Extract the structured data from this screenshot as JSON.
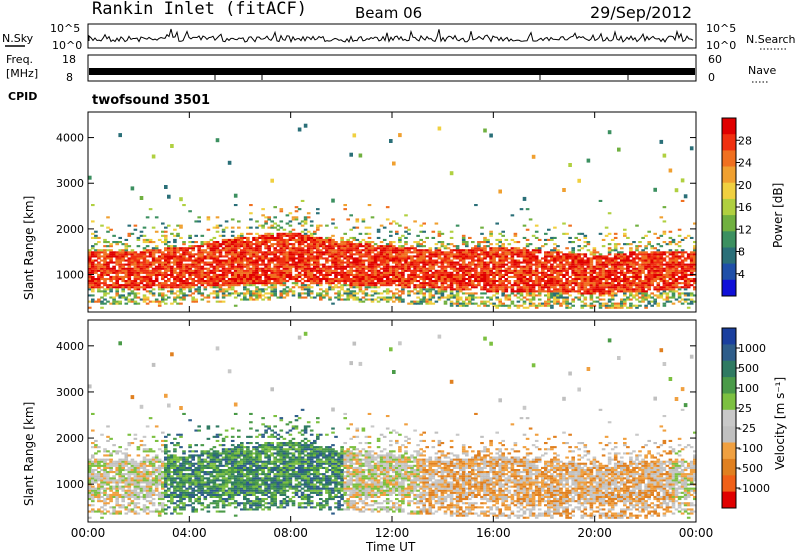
{
  "header": {
    "title": "Rankin Inlet (fitACF)",
    "beam": "Beam 06",
    "date": "29/Sep/2012"
  },
  "top_panels": {
    "nsky_label": "N.Sky",
    "nsearch_label": "N.Search",
    "noise_ticks": [
      "10^5",
      "10^0"
    ],
    "freq_label_line1": "Freq.",
    "freq_label_line2": "[MHz]",
    "freq_ticks": [
      "18",
      "8"
    ],
    "nave_label": "Nave",
    "nave_ticks": [
      "60",
      "0"
    ],
    "cpid_label": "CPID",
    "cpid_value": "twofsound 3501"
  },
  "colorbars": {
    "power": {
      "label": "Power [dB]",
      "ticks": [
        "28",
        "24",
        "20",
        "16",
        "12",
        "8",
        "4"
      ],
      "colors": [
        "#e00000",
        "#f03010",
        "#f07020",
        "#f0a030",
        "#f0d040",
        "#b0d040",
        "#70b040",
        "#3c9060",
        "#2a6f78",
        "#1f4fa8",
        "#1010d8"
      ]
    },
    "velocity": {
      "label": "Velocity [m s⁻¹]",
      "ticks": [
        "1000",
        "500",
        "100",
        "25",
        "-25",
        "-100",
        "-500",
        "-1000"
      ],
      "colors": [
        "#1a3f9e",
        "#2e5d8a",
        "#2f7a62",
        "#4a9a48",
        "#7cc040",
        "#c8c8c8",
        "#c0c0c0",
        "#f0a040",
        "#e08020",
        "#f06018",
        "#e00000"
      ]
    }
  },
  "axes": {
    "ylabel": "Slant Range [km]",
    "xlabel": "Time UT",
    "yticks": [
      "1000",
      "2000",
      "3000",
      "4000"
    ],
    "xticks": [
      "00:00",
      "04:00",
      "08:00",
      "12:00",
      "16:00",
      "20:00",
      "00:00"
    ]
  },
  "chart_data": {
    "type": "heatmap",
    "description_units": {
      "x": "hours UT",
      "y": "km"
    },
    "xlim": [
      0,
      24
    ],
    "ylim": [
      180,
      4560
    ],
    "panels": [
      {
        "name": "Power",
        "quantity": "Power [dB]",
        "clim": [
          0,
          30
        ]
      },
      {
        "name": "Velocity",
        "quantity": "Velocity [m s-1]",
        "clim": [
          -1000,
          1000
        ]
      }
    ],
    "main_band_profile": [
      {
        "t": 0,
        "low": 700,
        "high": 1500
      },
      {
        "t": 2,
        "low": 650,
        "high": 1500
      },
      {
        "t": 4,
        "low": 700,
        "high": 1600
      },
      {
        "t": 6,
        "low": 750,
        "high": 1800
      },
      {
        "t": 8,
        "low": 800,
        "high": 1900
      },
      {
        "t": 10,
        "low": 750,
        "high": 1700
      },
      {
        "t": 12,
        "low": 700,
        "high": 1600
      },
      {
        "t": 14,
        "low": 650,
        "high": 1500
      },
      {
        "t": 16,
        "low": 600,
        "high": 1600
      },
      {
        "t": 18,
        "low": 600,
        "high": 1500
      },
      {
        "t": 20,
        "low": 550,
        "high": 1400
      },
      {
        "t": 22,
        "low": 600,
        "high": 1500
      },
      {
        "t": 24,
        "low": 700,
        "high": 1500
      }
    ]
  }
}
